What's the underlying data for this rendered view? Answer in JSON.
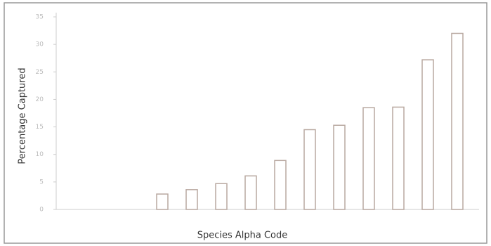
{
  "chart_data": {
    "type": "bar",
    "x_label": "Species Alpha Code",
    "y_label": "Percentage Captured",
    "categories": [
      null,
      null,
      null,
      null,
      null,
      null,
      null,
      null,
      null,
      null,
      null,
      null,
      null,
      null
    ],
    "values": [
      0,
      0,
      0,
      2.8,
      3.6,
      4.7,
      6.1,
      8.9,
      14.5,
      15.3,
      18.5,
      18.6,
      27.2,
      32
    ],
    "color": "#b9a9a1",
    "ylim": [
      0,
      35
    ],
    "yticks": [
      0,
      5,
      10,
      15,
      20,
      25,
      30,
      35
    ]
  }
}
